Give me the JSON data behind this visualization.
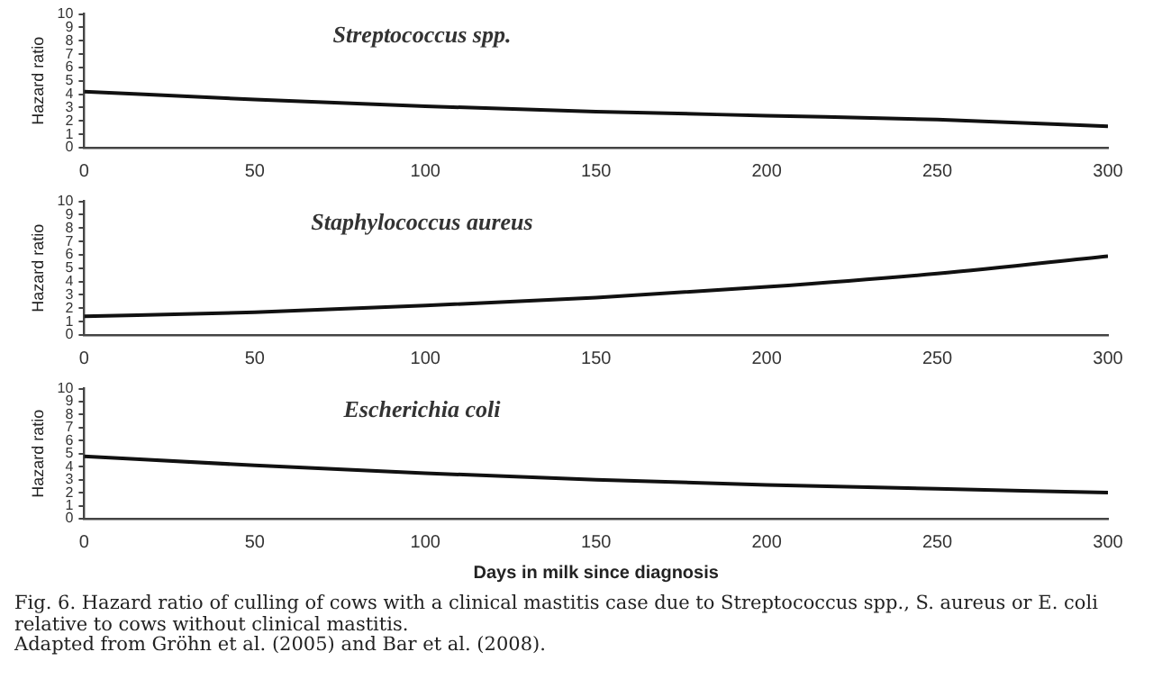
{
  "chart_data": [
    {
      "type": "line",
      "title": "Streptococcus spp.",
      "ylabel": "Hazard ratio",
      "x": [
        0,
        50,
        100,
        150,
        200,
        250,
        300
      ],
      "series": [
        {
          "color": "#111111",
          "values": [
            4.2,
            3.6,
            3.1,
            2.7,
            2.4,
            2.1,
            1.6
          ]
        }
      ],
      "xlim": [
        0,
        300
      ],
      "xticks": [
        0,
        50,
        100,
        150,
        200,
        250,
        300
      ],
      "ylim": [
        0,
        10
      ],
      "yticks": [
        0,
        1,
        2,
        3,
        4,
        5,
        6,
        7,
        8,
        9,
        10
      ],
      "grid": false,
      "legend": false,
      "marker": "none",
      "line_style": "solid"
    },
    {
      "type": "line",
      "title": "Staphylococcus aureus",
      "ylabel": "Hazard ratio",
      "x": [
        0,
        50,
        100,
        150,
        200,
        250,
        300
      ],
      "series": [
        {
          "color": "#111111",
          "values": [
            1.4,
            1.7,
            2.2,
            2.8,
            3.6,
            4.6,
            5.9
          ]
        }
      ],
      "xlim": [
        0,
        300
      ],
      "xticks": [
        0,
        50,
        100,
        150,
        200,
        250,
        300
      ],
      "ylim": [
        0,
        10
      ],
      "yticks": [
        0,
        1,
        2,
        3,
        4,
        5,
        6,
        7,
        8,
        9,
        10
      ],
      "grid": false,
      "legend": false,
      "marker": "none",
      "line_style": "solid"
    },
    {
      "type": "line",
      "title": "Escherichia coli",
      "ylabel": "Hazard ratio",
      "xlabel": "Days in milk since diagnosis",
      "x": [
        0,
        50,
        100,
        150,
        200,
        250,
        300
      ],
      "series": [
        {
          "color": "#111111",
          "values": [
            4.8,
            4.1,
            3.5,
            3.0,
            2.6,
            2.3,
            2.0
          ]
        }
      ],
      "xlim": [
        0,
        300
      ],
      "xticks": [
        0,
        50,
        100,
        150,
        200,
        250,
        300
      ],
      "ylim": [
        0,
        10
      ],
      "yticks": [
        0,
        1,
        2,
        3,
        4,
        5,
        6,
        7,
        8,
        9,
        10
      ],
      "grid": false,
      "legend": false,
      "marker": "none",
      "line_style": "solid",
      "annotations": [
        "Fig. 6. Hazard ratio of culling of cows with a clinical mastitis case due to Streptococcus spp., S. aureus or E. coli relative to cows without clinical mastitis.",
        "Adapted from Gröhn et al. (2005) and Bar et al. (2008)."
      ]
    }
  ]
}
